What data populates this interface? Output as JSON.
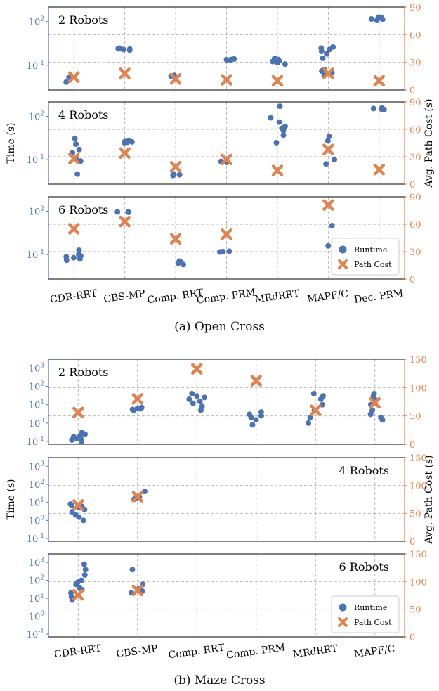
{
  "figures": [
    {
      "caption": "(a)  Open Cross"
    },
    {
      "caption": "(b)  Maze Cross"
    }
  ],
  "chart_data": [
    {
      "type": "scatter",
      "group": "Open Cross",
      "panel_label": "2 Robots",
      "categories": [
        "CDR-RRT",
        "CBS-MP",
        "Comp. RRT",
        "Comp. PRM",
        "MRdRRT",
        "MAPF/C",
        "Dec. PRM"
      ],
      "ylabel": "",
      "y2label": "",
      "yscale": "log",
      "ylim": [
        0.002,
        1000
      ],
      "y_ticks": [
        "10^-1",
        "10^2"
      ],
      "y2lim": [
        0,
        90
      ],
      "y2_ticks": [
        0,
        30,
        60,
        90
      ],
      "series": [
        {
          "name": "Runtime",
          "points": [
            [
              0,
              0.007
            ],
            [
              0,
              0.015
            ],
            [
              1,
              1.4
            ],
            [
              1,
              1.2
            ],
            [
              1,
              1.3
            ],
            [
              1,
              1.5
            ],
            [
              1,
              1.1
            ],
            [
              1,
              1.35
            ],
            [
              2,
              0.018
            ],
            [
              2,
              0.02
            ],
            [
              3,
              0.25
            ],
            [
              3,
              0.23
            ],
            [
              3,
              0.27
            ],
            [
              3,
              0.24
            ],
            [
              4,
              0.2
            ],
            [
              4,
              0.15
            ],
            [
              4,
              0.3
            ],
            [
              4,
              0.12
            ],
            [
              4,
              0.25
            ],
            [
              4,
              0.18
            ],
            [
              5,
              1.5
            ],
            [
              5,
              1.2
            ],
            [
              5,
              0.9
            ],
            [
              5,
              0.6
            ],
            [
              5,
              0.3
            ],
            [
              5,
              0.05
            ],
            [
              5,
              0.04
            ],
            [
              5,
              0.03
            ],
            [
              5,
              0.02
            ],
            [
              5,
              1.8
            ],
            [
              6,
              200
            ],
            [
              6,
              150
            ],
            [
              6,
              120
            ],
            [
              6,
              180
            ],
            [
              6,
              140
            ]
          ]
        },
        {
          "name": "Path Cost",
          "points": [
            [
              0,
              14
            ],
            [
              1,
              18
            ],
            [
              2,
              12
            ],
            [
              3,
              11
            ],
            [
              4,
              10
            ],
            [
              5,
              18
            ],
            [
              6,
              10
            ]
          ]
        }
      ]
    },
    {
      "type": "scatter",
      "group": "Open Cross",
      "panel_label": "4 Robots",
      "categories": [
        "CDR-RRT",
        "CBS-MP",
        "Comp. RRT",
        "Comp. PRM",
        "MRdRRT",
        "MAPF/C",
        "Dec. PRM"
      ],
      "ylabel": "Time (s)",
      "y2label": "Avg. Path Cost (s)",
      "yscale": "log",
      "ylim": [
        0.002,
        1000
      ],
      "y_ticks": [
        "10^-1",
        "10^2"
      ],
      "y2lim": [
        0,
        90
      ],
      "y2_ticks": [
        0,
        30,
        60,
        90
      ],
      "series": [
        {
          "name": "Runtime",
          "points": [
            [
              0,
              0.01
            ],
            [
              0,
              3
            ],
            [
              0,
              1.2
            ],
            [
              0,
              0.5
            ],
            [
              0,
              0.3
            ],
            [
              0,
              0.08
            ],
            [
              0,
              0.12
            ],
            [
              1,
              1.8
            ],
            [
              1,
              1.5
            ],
            [
              1,
              2
            ],
            [
              1,
              1.6
            ],
            [
              1,
              1.7
            ],
            [
              2,
              0.008
            ],
            [
              2,
              0.009
            ],
            [
              2,
              0.01
            ],
            [
              3,
              0.07
            ],
            [
              3,
              0.065
            ],
            [
              3,
              0.075
            ],
            [
              4,
              500
            ],
            [
              4,
              80
            ],
            [
              4,
              40
            ],
            [
              4,
              15
            ],
            [
              4,
              5
            ],
            [
              4,
              1.5
            ],
            [
              4,
              20
            ],
            [
              4,
              10
            ],
            [
              5,
              2
            ],
            [
              5,
              0.05
            ],
            [
              5,
              0.1
            ],
            [
              5,
              4
            ],
            [
              6,
              350
            ],
            [
              6,
              320
            ],
            [
              6,
              380
            ],
            [
              6,
              300
            ]
          ]
        },
        {
          "name": "Path Cost",
          "points": [
            [
              0,
              28
            ],
            [
              1,
              34
            ],
            [
              2,
              19
            ],
            [
              3,
              27
            ],
            [
              4,
              15
            ],
            [
              5,
              38
            ],
            [
              6,
              16
            ]
          ]
        }
      ]
    },
    {
      "type": "scatter",
      "group": "Open Cross",
      "panel_label": "6 Robots",
      "categories": [
        "CDR-RRT",
        "CBS-MP",
        "Comp. RRT",
        "Comp. PRM",
        "MRdRRT",
        "MAPF/C",
        "Dec. PRM"
      ],
      "ylabel": "",
      "y2label": "",
      "yscale": "log",
      "ylim": [
        0.002,
        1000
      ],
      "y_ticks": [
        "10^-1",
        "10^2"
      ],
      "y2lim": [
        0,
        90
      ],
      "y2_ticks": [
        0,
        30,
        60,
        90
      ],
      "series": [
        {
          "name": "Runtime",
          "points": [
            [
              0,
              0.1
            ],
            [
              0,
              0.08
            ],
            [
              0,
              0.06
            ],
            [
              0,
              0.05
            ],
            [
              0,
              0.04
            ],
            [
              0,
              0.07
            ],
            [
              0,
              0.2
            ],
            [
              1,
              85
            ],
            [
              1,
              88
            ],
            [
              1,
              90
            ],
            [
              2,
              0.03
            ],
            [
              2,
              0.025
            ],
            [
              2,
              0.02
            ],
            [
              2,
              0.035
            ],
            [
              3,
              0.16
            ],
            [
              3,
              0.15
            ],
            [
              3,
              0.17
            ],
            [
              5,
              10
            ],
            [
              5,
              0.4
            ]
          ]
        },
        {
          "name": "Path Cost",
          "points": [
            [
              0,
              55
            ],
            [
              1,
              63
            ],
            [
              2,
              44
            ],
            [
              3,
              49
            ],
            [
              5,
              81
            ]
          ]
        }
      ],
      "legend": {
        "position": "lower-right",
        "entries": [
          "Runtime",
          "Path Cost"
        ]
      }
    },
    {
      "type": "scatter",
      "group": "Maze Cross",
      "panel_label": "2 Robots",
      "categories": [
        "CDR-RRT",
        "CBS-MP",
        "Comp. RRT",
        "Comp. PRM",
        "MRdRRT",
        "MAPF/C"
      ],
      "ylabel": "",
      "y2label": "",
      "yscale": "log",
      "ylim": [
        0.07,
        3000
      ],
      "y_ticks": [
        "10^-1",
        "10^0",
        "10^1",
        "10^2",
        "10^3"
      ],
      "y2lim": [
        0,
        150
      ],
      "y2_ticks": [
        0,
        50,
        100,
        150
      ],
      "series": [
        {
          "name": "Runtime",
          "points": [
            [
              0,
              0.3
            ],
            [
              0,
              0.2
            ],
            [
              0,
              0.15
            ],
            [
              0,
              0.1
            ],
            [
              0,
              0.12
            ],
            [
              0,
              0.18
            ],
            [
              0,
              0.25
            ],
            [
              0,
              0.14
            ],
            [
              1,
              6
            ],
            [
              1,
              5
            ],
            [
              1,
              6.5
            ],
            [
              1,
              5.5
            ],
            [
              1,
              7
            ],
            [
              2,
              30
            ],
            [
              2,
              20
            ],
            [
              2,
              12
            ],
            [
              2,
              8
            ],
            [
              2,
              5
            ],
            [
              2,
              40
            ],
            [
              2,
              25
            ],
            [
              2,
              15
            ],
            [
              3,
              3
            ],
            [
              3,
              2.5
            ],
            [
              3,
              1.5
            ],
            [
              3,
              0.8
            ],
            [
              3,
              4
            ],
            [
              3,
              2
            ],
            [
              4,
              40
            ],
            [
              4,
              20
            ],
            [
              4,
              10
            ],
            [
              4,
              5
            ],
            [
              4,
              2
            ],
            [
              4,
              1
            ],
            [
              4,
              30
            ],
            [
              5,
              40
            ],
            [
              5,
              30
            ],
            [
              5,
              20
            ],
            [
              5,
              5
            ],
            [
              5,
              2
            ],
            [
              5,
              1.5
            ],
            [
              5,
              10
            ],
            [
              5,
              3
            ]
          ]
        },
        {
          "name": "Path Cost",
          "points": [
            [
              0,
              56
            ],
            [
              1,
              80
            ],
            [
              2,
              133
            ],
            [
              3,
              112
            ],
            [
              4,
              60
            ],
            [
              5,
              73
            ]
          ]
        }
      ]
    },
    {
      "type": "scatter",
      "group": "Maze Cross",
      "panel_label": "4 Robots",
      "categories": [
        "CDR-RRT",
        "CBS-MP",
        "Comp. RRT",
        "Comp. PRM",
        "MRdRRT",
        "MAPF/C"
      ],
      "ylabel": "Time (s)",
      "y2label": "Avg. Path Cost (s)",
      "yscale": "log",
      "ylim": [
        0.07,
        3000
      ],
      "y_ticks": [
        "10^-1",
        "10^0",
        "10^1",
        "10^2",
        "10^3"
      ],
      "y2lim": [
        0,
        150
      ],
      "y2_ticks": [
        0,
        50,
        100,
        150
      ],
      "series": [
        {
          "name": "Runtime",
          "points": [
            [
              0,
              8
            ],
            [
              0,
              6
            ],
            [
              0,
              5
            ],
            [
              0,
              4
            ],
            [
              0,
              3
            ],
            [
              0,
              2
            ],
            [
              0,
              1.5
            ],
            [
              0,
              1
            ],
            [
              0,
              7
            ],
            [
              1,
              15
            ],
            [
              1,
              17
            ],
            [
              1,
              20
            ],
            [
              1,
              40
            ]
          ]
        },
        {
          "name": "Path Cost",
          "points": [
            [
              0,
              65
            ],
            [
              1,
              80
            ]
          ]
        }
      ]
    },
    {
      "type": "scatter",
      "group": "Maze Cross",
      "panel_label": "6 Robots",
      "categories": [
        "CDR-RRT",
        "CBS-MP",
        "Comp. RRT",
        "Comp. PRM",
        "MRdRRT",
        "MAPF/C"
      ],
      "ylabel": "",
      "y2label": "",
      "yscale": "log",
      "ylim": [
        0.07,
        3000
      ],
      "y_ticks": [
        "10^-1",
        "10^0",
        "10^1",
        "10^2",
        "10^3"
      ],
      "y2lim": [
        0,
        150
      ],
      "y2_ticks": [
        0,
        50,
        100,
        150
      ],
      "series": [
        {
          "name": "Runtime",
          "points": [
            [
              0,
              800
            ],
            [
              0,
              400
            ],
            [
              0,
              200
            ],
            [
              0,
              100
            ],
            [
              0,
              80
            ],
            [
              0,
              60
            ],
            [
              0,
              40
            ],
            [
              0,
              30
            ],
            [
              0,
              20
            ],
            [
              0,
              12
            ],
            [
              0,
              8
            ],
            [
              1,
              400
            ],
            [
              1,
              60
            ],
            [
              1,
              35
            ],
            [
              1,
              25
            ],
            [
              1,
              20
            ]
          ]
        },
        {
          "name": "Path Cost",
          "points": [
            [
              0,
              76
            ],
            [
              1,
              84
            ]
          ]
        }
      ],
      "legend": {
        "position": "lower-right",
        "entries": [
          "Runtime",
          "Path Cost"
        ]
      }
    }
  ]
}
